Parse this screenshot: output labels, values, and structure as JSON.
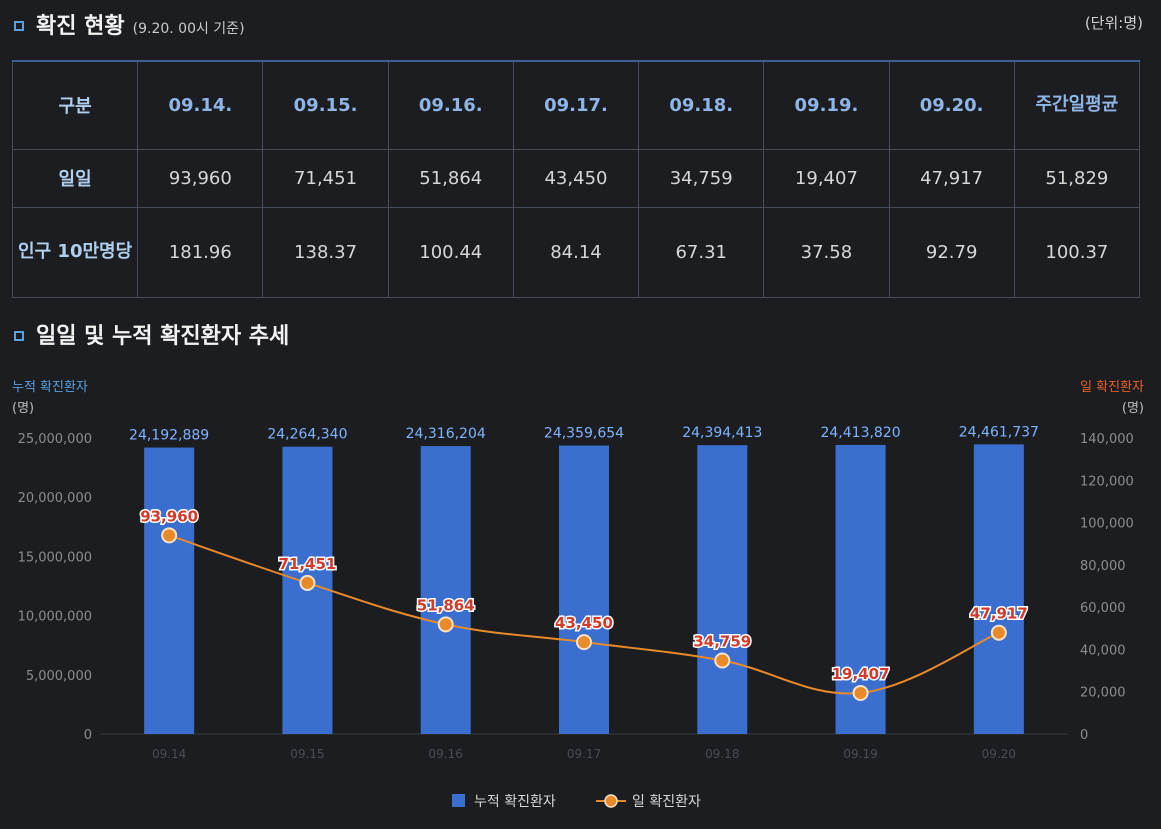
{
  "section1": {
    "title": "확진 현황",
    "subtitle": "(9.20. 00시 기준)",
    "unit": "(단위:명)"
  },
  "table": {
    "header": [
      "구분",
      "09.14.",
      "09.15.",
      "09.16.",
      "09.17.",
      "09.18.",
      "09.19.",
      "09.20.",
      "주간일평균"
    ],
    "rows": [
      {
        "label": "일일",
        "values": [
          "93,960",
          "71,451",
          "51,864",
          "43,450",
          "34,759",
          "19,407",
          "47,917",
          "51,829"
        ]
      },
      {
        "label": "인구 10만명당",
        "values": [
          "181.96",
          "138.37",
          "100.44",
          "84.14",
          "67.31",
          "37.58",
          "92.79",
          "100.37"
        ]
      }
    ]
  },
  "section2": {
    "title": "일일 및 누적 확진환자 추세"
  },
  "chart_data": {
    "type": "bar+line",
    "categories": [
      "09.14",
      "09.15",
      "09.16",
      "09.17",
      "09.18",
      "09.19",
      "09.20"
    ],
    "series": [
      {
        "name": "누적 확진환자",
        "type": "bar",
        "axis": "left",
        "color": "#3a6fd0",
        "values": [
          24192889,
          24264340,
          24316204,
          24359654,
          24394413,
          24413820,
          24461737
        ],
        "labels": [
          "24,192,889",
          "24,264,340",
          "24,316,204",
          "24,359,654",
          "24,394,413",
          "24,413,820",
          "24,461,737"
        ]
      },
      {
        "name": "일 확진환자",
        "type": "line",
        "axis": "right",
        "color": "#e8892a",
        "values": [
          93960,
          71451,
          51864,
          43450,
          34759,
          19407,
          47917
        ],
        "labels": [
          "93,960",
          "71,451",
          "51,864",
          "43,450",
          "34,759",
          "19,407",
          "47,917"
        ]
      }
    ],
    "left_axis": {
      "title": "누적 확진환자",
      "unit": "(명)",
      "ylim": [
        0,
        25000000
      ],
      "ticks": [
        0,
        5000000,
        10000000,
        15000000,
        20000000,
        25000000
      ],
      "tick_labels": [
        "0",
        "5,000,000",
        "10,000,000",
        "15,000,000",
        "20,000,000",
        "25,000,000"
      ]
    },
    "right_axis": {
      "title": "일 확진환자",
      "unit": "(명)",
      "ylim": [
        0,
        140000
      ],
      "ticks": [
        0,
        20000,
        40000,
        60000,
        80000,
        100000,
        120000,
        140000
      ],
      "tick_labels": [
        "0",
        "20,000",
        "40,000",
        "60,000",
        "80,000",
        "100,000",
        "120,000",
        "140,000"
      ]
    },
    "legend_position": "bottom-center"
  },
  "colors": {
    "bar": "#3a6fd0",
    "line": "#e8892a",
    "bar_label": "#7eb4ff",
    "line_label": "#d23a2a",
    "left_title": "#5aa0e0",
    "right_title": "#e8602a"
  }
}
